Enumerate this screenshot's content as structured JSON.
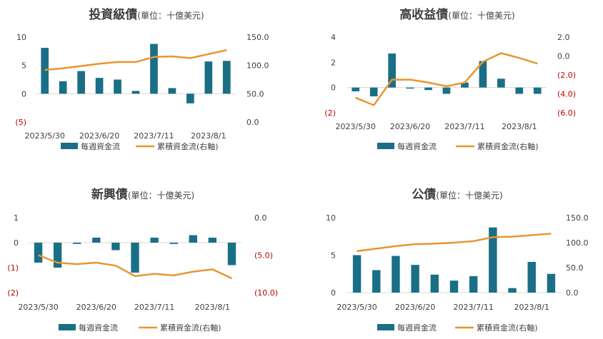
{
  "colors": {
    "bar": "#1a6f86",
    "line": "#e8962f",
    "axis_text": "#404040",
    "negative": "#c00000",
    "baseline": "#d9d9d9"
  },
  "legend": {
    "bar": "每週資金流",
    "line": "累積資金流(右軸)"
  },
  "chart_data": [
    {
      "type": "bar+line",
      "title_main": "投資級債",
      "title_unit": "(單位：十億美元)",
      "x_ticks": [
        "2023/5/30",
        "2023/6/20",
        "2023/7/11",
        "2023/8/1"
      ],
      "y_left": {
        "min": -5,
        "max": 10,
        "ticks": [
          10,
          5,
          0,
          -5
        ],
        "labels": [
          "10",
          "5",
          "0",
          "(5)"
        ]
      },
      "y_right": {
        "min": 0,
        "max": 150,
        "ticks": [
          150,
          100,
          50,
          0
        ],
        "labels": [
          "150.0",
          "100.0",
          "50.0",
          "0.0"
        ]
      },
      "series": [
        {
          "name": "每週資金流",
          "kind": "bar",
          "values": [
            8.1,
            2.2,
            4.0,
            2.8,
            2.5,
            0.5,
            8.8,
            1.0,
            -1.7,
            5.7,
            5.8
          ]
        },
        {
          "name": "累積資金流(右軸)",
          "kind": "line",
          "values": [
            92,
            95,
            99,
            103,
            106,
            106,
            115,
            116,
            113,
            120,
            127
          ]
        }
      ]
    },
    {
      "type": "bar+line",
      "title_main": "高收益債",
      "title_unit": "(單位：十億美元)",
      "x_ticks": [
        "2023/5/30",
        "2023/6/20",
        "2023/7/11",
        "2023/8/1"
      ],
      "y_left": {
        "min": -2,
        "max": 4,
        "ticks": [
          4,
          2,
          0,
          -2
        ],
        "labels": [
          "4",
          "2",
          "0",
          "(2)"
        ]
      },
      "y_right": {
        "min": -6,
        "max": 2,
        "ticks": [
          2,
          0,
          -2,
          -4,
          -6
        ],
        "labels": [
          "2.0",
          "0.0",
          "(2.0)",
          "(4.0)",
          "(6.0)"
        ]
      },
      "series": [
        {
          "name": "每週資金流",
          "kind": "bar",
          "values": [
            -0.3,
            -0.7,
            2.7,
            -0.05,
            -0.2,
            -0.5,
            0.4,
            2.1,
            0.7,
            -0.5,
            -0.5
          ]
        },
        {
          "name": "累積資金流(右軸)",
          "kind": "line",
          "values": [
            -4.4,
            -5.2,
            -2.5,
            -2.5,
            -2.8,
            -3.2,
            -2.8,
            -0.6,
            0.3,
            -0.2,
            -0.8
          ]
        }
      ]
    },
    {
      "type": "bar+line",
      "title_main": "新興債",
      "title_unit": "(單位：十億美元)",
      "x_ticks": [
        "2023/5/30",
        "2023/6/20",
        "2023/7/11",
        "2023/8/1"
      ],
      "y_left": {
        "min": -2,
        "max": 1,
        "ticks": [
          1,
          0,
          -1,
          -2
        ],
        "labels": [
          "1",
          "0",
          "(1)",
          "(2)"
        ]
      },
      "y_right": {
        "min": -10,
        "max": 0,
        "ticks": [
          0,
          -5,
          -10
        ],
        "labels": [
          "0.0",
          "(5.0)",
          "(10.0)"
        ]
      },
      "series": [
        {
          "name": "每週資金流",
          "kind": "bar",
          "values": [
            -0.8,
            -1.0,
            -0.05,
            0.2,
            -0.3,
            -1.2,
            0.2,
            -0.05,
            0.3,
            0.2,
            -0.9
          ]
        },
        {
          "name": "累積資金流(右軸)",
          "kind": "line",
          "values": [
            -5.0,
            -6.0,
            -6.2,
            -6.0,
            -6.4,
            -7.8,
            -7.5,
            -7.7,
            -7.2,
            -6.9,
            -8.1
          ]
        }
      ]
    },
    {
      "type": "bar+line",
      "title_main": "公債",
      "title_unit": "(單位：十億美元)",
      "x_ticks": [
        "2023/5/30",
        "2023/6/20",
        "2023/7/11",
        "2023/8/1"
      ],
      "y_left": {
        "min": 0,
        "max": 10,
        "ticks": [
          10,
          5,
          0
        ],
        "labels": [
          "10",
          "5",
          "0"
        ]
      },
      "y_right": {
        "min": 0,
        "max": 150,
        "ticks": [
          150,
          100,
          50,
          0
        ],
        "labels": [
          "150.0",
          "100.0",
          "50.0",
          "0.0"
        ]
      },
      "series": [
        {
          "name": "每週資金流",
          "kind": "bar",
          "values": [
            5.0,
            3.0,
            4.9,
            3.7,
            2.4,
            1.6,
            2.2,
            8.7,
            0.6,
            4.1,
            2.5
          ]
        },
        {
          "name": "累積資金流(右軸)",
          "kind": "line",
          "values": [
            83,
            88,
            93,
            97,
            98,
            100,
            103,
            111,
            112,
            115,
            118
          ]
        }
      ]
    }
  ]
}
